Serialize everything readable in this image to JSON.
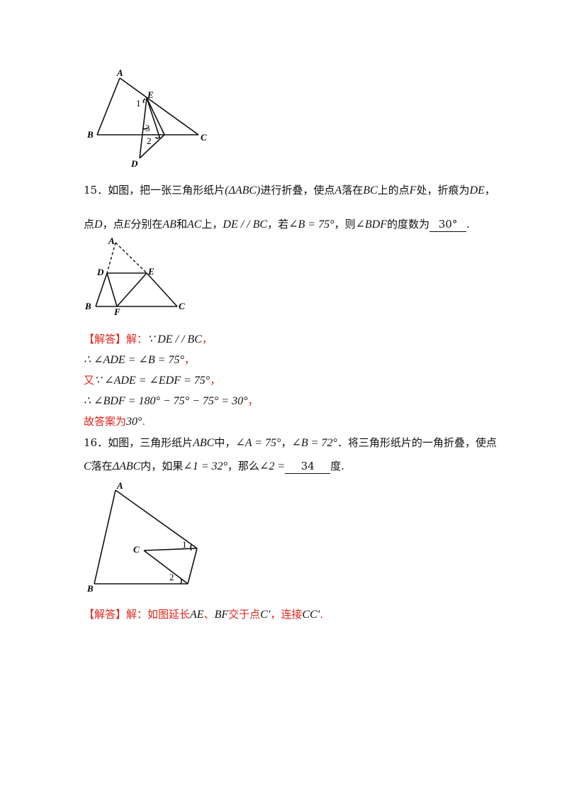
{
  "fig14": {
    "A": "A",
    "B": "B",
    "C": "C",
    "D": "D",
    "E": "E",
    "n1": "1",
    "n2": "2",
    "n3": "3"
  },
  "q15": {
    "num": "15．",
    "l1_a": "如图，把一张三角形纸片",
    "l1_tri": "(ΔABC)",
    "l1_b": "进行折叠，使点",
    "l1_A": "A",
    "l1_c": "落在",
    "l1_BC": "BC",
    "l1_d": "上的点",
    "l1_F": "F",
    "l1_e": "处，折痕为",
    "l1_DE": "DE",
    "l1_f": "，",
    "l2_a": "点",
    "l2_D": "D",
    "l2_b": "，点",
    "l2_E": "E",
    "l2_c": "分别在",
    "l2_AB": "AB",
    "l2_d": "和",
    "l2_AC": "AC",
    "l2_e": "上，",
    "l2_par": "DE / / BC",
    "l2_f": "，若",
    "l2_angle": "∠B = 75°",
    "l2_g": "，则",
    "l2_BDF": "∠BDF",
    "l2_h": "的度数为",
    "l2_answer": "30°",
    "l2_end": "."
  },
  "fig15": {
    "A": "A",
    "B": "B",
    "C": "C",
    "D": "D",
    "E": "E",
    "F": "F"
  },
  "sol15": {
    "tag": "【解答】",
    "l1_jie": "解：",
    "l1_math": "∵ DE / / BC",
    "l1_end": "，",
    "l2_math": "∴ ∠ADE = ∠B = 75°",
    "l2_end": "，",
    "l3_you": "又",
    "l3_math": "∵ ∠ADE = ∠EDF = 75°",
    "l3_end": "，",
    "l4_math": "∴ ∠BDF = 180° − 75° − 75° = 30°",
    "l4_end": "，",
    "l5_a": "故答案为",
    "l5_math": "30°",
    "l5_end": "."
  },
  "q16": {
    "num": "16．",
    "l1_a": "如图，三角形纸片",
    "l1_ABC": "ABC",
    "l1_b": "中，",
    "l1_angA": "∠A = 75°",
    "l1_c": "，",
    "l1_angB": "∠B = 72°",
    "l1_d": "．将三角形纸片的一角折叠，使点",
    "l2_C": "C",
    "l2_a": "落在",
    "l2_tri": "ΔABC",
    "l2_b": "内，如果",
    "l2_ang1": "∠1 = 32°",
    "l2_c": "，那么",
    "l2_ang2": "∠2 =",
    "l2_answer": "34",
    "l2_d": "度."
  },
  "fig16": {
    "A": "A",
    "B": "B",
    "C": "C",
    "n1": "1",
    "n2": "2"
  },
  "sol16": {
    "tag": "【解答】",
    "a": "解：如图延长",
    "AE": "AE",
    "b": "、",
    "BF": "BF",
    "c": "交于点",
    "Cp": "C′",
    "d": "，连接",
    "CCp": "CC′",
    "e": "."
  }
}
